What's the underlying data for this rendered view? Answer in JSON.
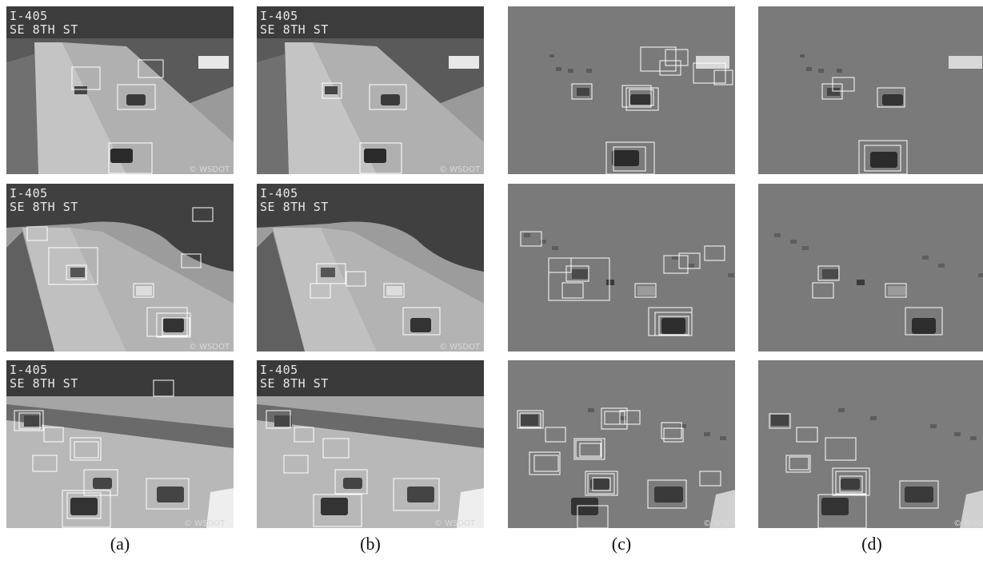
{
  "overlay": {
    "line1": "I-405",
    "line2": "SE 8TH ST",
    "watermark": "© WSDOT"
  },
  "captions": {
    "a": "(a)",
    "b": "(b)",
    "c": "(c)",
    "d": "(d)"
  },
  "colors": {
    "box": "#ffffff",
    "background_gray": "#7a7a7a"
  }
}
